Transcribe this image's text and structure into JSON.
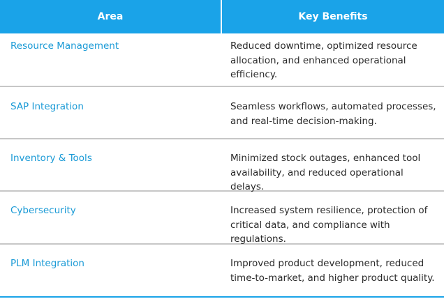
{
  "table": {
    "headers": {
      "area": "Area",
      "benefits": "Key Benefits"
    },
    "rows": [
      {
        "area": "Resource Management",
        "benefit": "Reduced downtime, optimized resource allocation, and enhanced operational efficiency."
      },
      {
        "area": "SAP Integration",
        "benefit": "Seamless workflows, automated processes, and real-time decision-making."
      },
      {
        "area": "Inventory & Tools",
        "benefit": "Minimized stock outages, enhanced tool availability, and reduced operational delays."
      },
      {
        "area": "Cybersecurity",
        "benefit": "Increased system resilience, protection of critical data, and compliance with regulations."
      },
      {
        "area": "PLM Integration",
        "benefit": "Improved product development, reduced time-to-market, and higher product quality."
      }
    ]
  },
  "colors": {
    "header_background": "#1aa3e8",
    "area_text": "#1a9ad6",
    "row_divider": "#c7c7c7"
  }
}
